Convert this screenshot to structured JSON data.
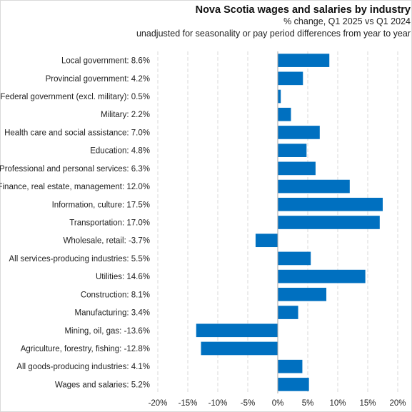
{
  "chart_data": {
    "type": "bar",
    "orientation": "horizontal",
    "title": "Nova Scotia wages and salaries by industry",
    "subtitle": "% change, Q1 2025 vs Q1 2024",
    "note": "unadjusted for seasonality or pay period differences from year to year",
    "categories": [
      "Local government",
      "Provincial government",
      "Federal government (excl. military)",
      "Military",
      "Health care and social assistance",
      "Education",
      "Professional and personal services",
      "Finance, real estate, management",
      "Information, culture",
      "Transportation",
      "Wholesale, retail",
      "All services-producing industries",
      "Utilities",
      "Construction",
      "Manufacturing",
      "Mining, oil, gas",
      "Agriculture, forestry, fishing",
      "All goods-producing industries",
      "Wages and salaries"
    ],
    "values": [
      8.6,
      4.2,
      0.5,
      2.2,
      7.0,
      4.8,
      6.3,
      12.0,
      17.5,
      17.0,
      -3.7,
      5.5,
      14.6,
      8.1,
      3.4,
      -13.6,
      -12.8,
      4.1,
      5.2
    ],
    "value_labels": [
      "8.6%",
      "4.2%",
      "0.5%",
      "2.2%",
      "7.0%",
      "4.8%",
      "6.3%",
      "12.0%",
      "17.5%",
      "17.0%",
      "-3.7%",
      "5.5%",
      "14.6%",
      "8.1%",
      "3.4%",
      "-13.6%",
      "-12.8%",
      "4.1%",
      "5.2%"
    ],
    "x_ticks": [
      -20,
      -15,
      -10,
      -5,
      0,
      5,
      10,
      15,
      20
    ],
    "x_tick_labels": [
      "-20%",
      "-15%",
      "-10%",
      "-5%",
      "0%",
      "5%",
      "10%",
      "15%",
      "20%"
    ],
    "xlim": [
      -20,
      20
    ],
    "xlabel": "",
    "ylabel": "",
    "grid": "vertical gridlines, dashed",
    "legend": "none",
    "bar_color": "#0070c0",
    "grid_color": "#d9d9d9",
    "axis_color": "#a6a6a6"
  }
}
